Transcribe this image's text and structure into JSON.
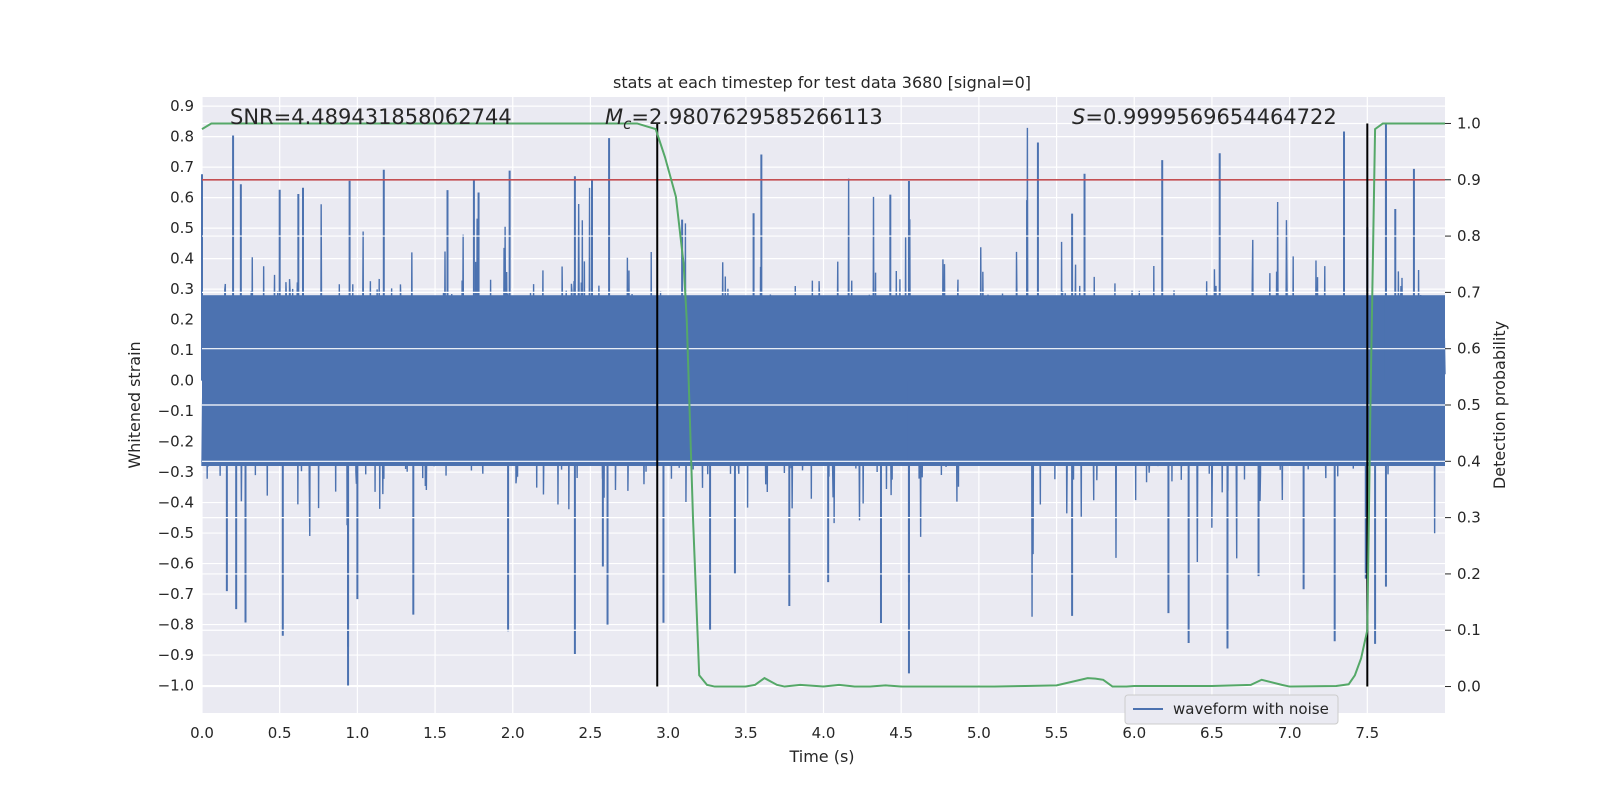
{
  "chart_data": {
    "type": "line",
    "title": "stats at each timestep for test data 3680 [signal=0]",
    "xlabel": "Time (s)",
    "ylabel": "Whitened strain",
    "y2label": "Detection probability",
    "xlim": [
      0.0,
      8.0
    ],
    "ylim": [
      -1.09,
      0.93
    ],
    "y2lim": [
      -0.047,
      1.047
    ],
    "x_ticks": [
      "0.0",
      "0.5",
      "1.0",
      "1.5",
      "2.0",
      "2.5",
      "3.0",
      "3.5",
      "4.0",
      "4.5",
      "5.0",
      "5.5",
      "6.0",
      "6.5",
      "7.0",
      "7.5"
    ],
    "x_tick_values": [
      0.0,
      0.5,
      1.0,
      1.5,
      2.0,
      2.5,
      3.0,
      3.5,
      4.0,
      4.5,
      5.0,
      5.5,
      6.0,
      6.5,
      7.0,
      7.5
    ],
    "y_ticks": [
      "0.9",
      "0.8",
      "0.7",
      "0.6",
      "0.5",
      "0.4",
      "0.3",
      "0.2",
      "0.1",
      "0.0",
      "−0.1",
      "−0.2",
      "−0.3",
      "−0.4",
      "−0.5",
      "−0.6",
      "−0.7",
      "−0.8",
      "−0.9",
      "−1.0"
    ],
    "y_tick_values": [
      0.9,
      0.8,
      0.7,
      0.6,
      0.5,
      0.4,
      0.3,
      0.2,
      0.1,
      0.0,
      -0.1,
      -0.2,
      -0.3,
      -0.4,
      -0.5,
      -0.6,
      -0.7,
      -0.8,
      -0.9,
      -1.0
    ],
    "y2_ticks": [
      "1.0",
      "0.9",
      "0.8",
      "0.7",
      "0.6",
      "0.5",
      "0.4",
      "0.3",
      "0.2",
      "0.1",
      "0.0"
    ],
    "y2_tick_values": [
      1.0,
      0.9,
      0.8,
      0.7,
      0.6,
      0.5,
      0.4,
      0.3,
      0.2,
      0.1,
      0.0
    ],
    "annotations": {
      "snr": "SNR=4.489431858062744",
      "mc_symbol": "M",
      "mc_sub": "c",
      "mc_value": "=2.9807629585266113",
      "s_symbol": "S",
      "s_value": "=0.9999569654464722"
    },
    "threshold": {
      "value": 0.9,
      "axis": "y2",
      "color": "#c44e52"
    },
    "vertical_markers": [
      2.93,
      7.5
    ],
    "waveform": {
      "name": "waveform with noise",
      "color": "#4c72b0",
      "samples": 2400,
      "core_amplitude": 0.28,
      "max": 0.84,
      "min": -1.0,
      "description_peaks_up": [
        0.0,
        0.2,
        0.25,
        0.5,
        0.62,
        0.65,
        0.95,
        1.17,
        1.58,
        1.75,
        1.78,
        1.98,
        2.4,
        2.51,
        2.62,
        3.09,
        3.55,
        3.6,
        4.43,
        4.55,
        5.31,
        5.38,
        5.6,
        5.68,
        6.18,
        6.55,
        7.35,
        7.5,
        7.62,
        7.68,
        7.8
      ],
      "description_peaks_down": [
        0.16,
        0.22,
        0.28,
        0.52,
        0.94,
        1.0,
        1.36,
        1.97,
        2.4,
        2.58,
        2.61,
        2.97,
        3.27,
        3.43,
        3.78,
        4.03,
        4.37,
        4.55,
        5.6,
        6.22,
        6.35,
        6.6,
        6.8,
        7.09,
        7.29,
        7.49,
        7.55,
        7.62
      ]
    },
    "probability": {
      "name": "detection probability",
      "color": "#55a868",
      "x": [
        0.0,
        0.06,
        0.2,
        0.5,
        1.0,
        1.5,
        2.0,
        2.5,
        2.8,
        2.92,
        2.98,
        3.05,
        3.1,
        3.12,
        3.16,
        3.2,
        3.25,
        3.3,
        3.4,
        3.5,
        3.56,
        3.62,
        3.7,
        3.75,
        3.85,
        4.0,
        4.1,
        4.2,
        4.3,
        4.4,
        4.5,
        4.7,
        4.9,
        5.1,
        5.3,
        5.5,
        5.7,
        5.75,
        5.8,
        5.86,
        5.95,
        6.0,
        6.5,
        6.75,
        6.82,
        6.95,
        7.0,
        7.3,
        7.38,
        7.42,
        7.46,
        7.5,
        7.52,
        7.55,
        7.6,
        8.0
      ],
      "y": [
        0.99,
        1.0,
        1.0,
        1.0,
        1.0,
        1.0,
        1.0,
        1.0,
        1.0,
        0.99,
        0.94,
        0.87,
        0.75,
        0.65,
        0.3,
        0.02,
        0.003,
        0.0,
        0.0,
        0.0,
        0.003,
        0.015,
        0.003,
        0.0,
        0.003,
        0.0,
        0.003,
        0.0,
        0.0,
        0.002,
        0.0,
        0.0,
        0.0,
        0.0,
        0.001,
        0.002,
        0.015,
        0.014,
        0.012,
        0.0,
        0.0,
        0.001,
        0.001,
        0.003,
        0.012,
        0.003,
        0.0,
        0.001,
        0.004,
        0.02,
        0.05,
        0.1,
        0.5,
        0.99,
        1.0,
        1.0
      ]
    },
    "legend": {
      "entries": [
        "waveform with noise"
      ],
      "position": "lower-right"
    }
  }
}
